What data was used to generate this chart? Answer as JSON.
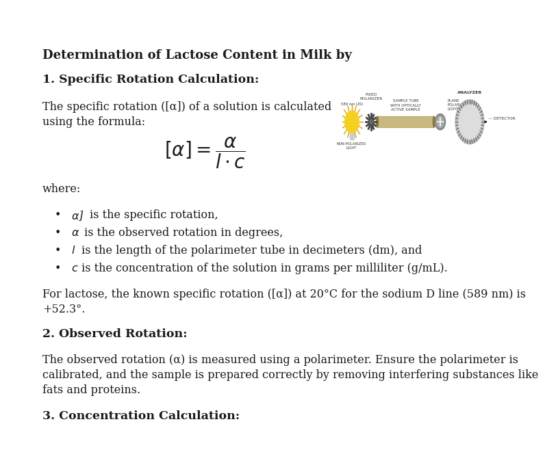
{
  "title": "Determination of Lactose Content in Milk by",
  "section1_heading": "1. Specific Rotation Calculation:",
  "section1_intro_line1": "The specific rotation ([α]) of a solution is calculated",
  "section1_intro_line2": "using the formula:",
  "where_label": "where:",
  "bullet1_rest": " is the specific rotation,",
  "bullet2_rest": "is the observed rotation in degrees,",
  "bullet3_rest": "is the length of the polarimeter tube in decimeters (dm), and",
  "bullet4_rest": "is the concentration of the solution in grams per milliliter (g/mL).",
  "para1_line1": "For lactose, the known specific rotation ([α]) at 20°C for the sodium D line (589 nm) is",
  "para1_line2": "+52.3°.",
  "section2_heading": "2. Observed Rotation:",
  "section2_para_line1": "The observed rotation (α) is measured using a polarimeter. Ensure the polarimeter is",
  "section2_para_line2": "calibrated, and the sample is prepared correctly by removing interfering substances like",
  "section2_para_line3": "fats and proteins.",
  "section3_heading": "3. Concentration Calculation:",
  "bg_color": "#ffffff",
  "text_color": "#1a1a1a",
  "heading_color": "#1a1a1a"
}
